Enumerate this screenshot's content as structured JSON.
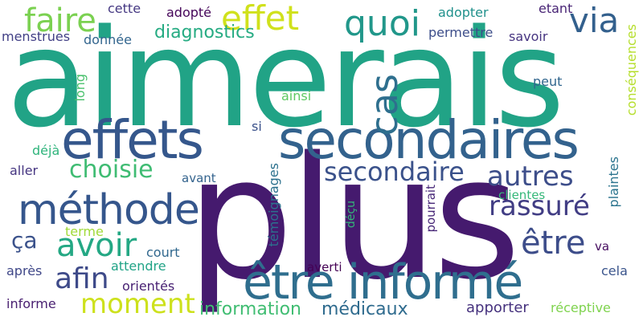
{
  "words": [
    {
      "text": "aimerais",
      "color": "#21a386",
      "vertical": false
    },
    {
      "text": "plus",
      "color": "#451a6e",
      "vertical": false
    },
    {
      "text": "effets",
      "color": "#35578c",
      "vertical": false
    },
    {
      "text": "secondaires",
      "color": "#33628d",
      "vertical": false
    },
    {
      "text": "être informé",
      "color": "#2f6e8e",
      "vertical": false
    },
    {
      "text": "méthode",
      "color": "#35568c",
      "vertical": false
    },
    {
      "text": "quoi",
      "color": "#21978a",
      "vertical": false
    },
    {
      "text": "effet",
      "color": "#d0e11c",
      "vertical": false
    },
    {
      "text": "faire",
      "color": "#7bd151",
      "vertical": false
    },
    {
      "text": "avoir",
      "color": "#24a884",
      "vertical": false
    },
    {
      "text": "secondaire",
      "color": "#3b528b",
      "vertical": false
    },
    {
      "text": "rassuré",
      "color": "#413d84",
      "vertical": false
    },
    {
      "text": "être",
      "color": "#3d4d8a",
      "vertical": false
    },
    {
      "text": "autres",
      "color": "#3d4e8a",
      "vertical": false
    },
    {
      "text": "via",
      "color": "#33608d",
      "vertical": false
    },
    {
      "text": "choisie",
      "color": "#3fbc73",
      "vertical": false
    },
    {
      "text": "moment",
      "color": "#cde11d",
      "vertical": false
    },
    {
      "text": "afin",
      "color": "#3e4a89",
      "vertical": false
    },
    {
      "text": "ça",
      "color": "#3b528b",
      "vertical": false
    },
    {
      "text": "cas",
      "color": "#2e6f8e",
      "vertical": true
    },
    {
      "text": "diagnostics",
      "color": "#25ab82",
      "vertical": false
    },
    {
      "text": "information",
      "color": "#40bd72",
      "vertical": false
    },
    {
      "text": "médicaux",
      "color": "#2f6b8e",
      "vertical": false
    },
    {
      "text": "apporter",
      "color": "#46327e",
      "vertical": false
    },
    {
      "text": "réceptive",
      "color": "#7fd34e",
      "vertical": false
    },
    {
      "text": "cela",
      "color": "#3a548c",
      "vertical": false
    },
    {
      "text": "va",
      "color": "#470d60",
      "vertical": false
    },
    {
      "text": "plaintes",
      "color": "#2b748e",
      "vertical": true
    },
    {
      "text": "conséquences",
      "color": "#b5de2b",
      "vertical": true
    },
    {
      "text": "etant",
      "color": "#482475",
      "vertical": false
    },
    {
      "text": "adopter",
      "color": "#21918c",
      "vertical": false
    },
    {
      "text": "permettre",
      "color": "#3d4e8a",
      "vertical": false
    },
    {
      "text": "savoir",
      "color": "#463480",
      "vertical": false
    },
    {
      "text": "peut",
      "color": "#31668e",
      "vertical": false
    },
    {
      "text": "clientes",
      "color": "#35b779",
      "vertical": false
    },
    {
      "text": "pourrait",
      "color": "#482878",
      "vertical": true
    },
    {
      "text": "déçu",
      "color": "#34b679",
      "vertical": true
    },
    {
      "text": "témoignages",
      "color": "#2c718e",
      "vertical": true
    },
    {
      "text": "averti",
      "color": "#440154",
      "vertical": false
    },
    {
      "text": "avant",
      "color": "#33638d",
      "vertical": false
    },
    {
      "text": "court",
      "color": "#31688e",
      "vertical": false
    },
    {
      "text": "attendre",
      "color": "#20a386",
      "vertical": false
    },
    {
      "text": "orientés",
      "color": "#482173",
      "vertical": false
    },
    {
      "text": "informe",
      "color": "#481f70",
      "vertical": false
    },
    {
      "text": "après",
      "color": "#3f4788",
      "vertical": false
    },
    {
      "text": "terme",
      "color": "#a0da39",
      "vertical": false
    },
    {
      "text": "aller",
      "color": "#453581",
      "vertical": false
    },
    {
      "text": "déjà",
      "color": "#2fb47c",
      "vertical": false
    },
    {
      "text": "si",
      "color": "#3b528b",
      "vertical": false
    },
    {
      "text": "ainsi",
      "color": "#5ec962",
      "vertical": false
    },
    {
      "text": "long",
      "color": "#4ac16d",
      "vertical": true
    },
    {
      "text": "cette",
      "color": "#453882",
      "vertical": false
    },
    {
      "text": "donnée",
      "color": "#32658e",
      "vertical": false
    },
    {
      "text": "adopté",
      "color": "#450559",
      "vertical": false
    },
    {
      "text": "menstrues",
      "color": "#424086",
      "vertical": false
    }
  ]
}
